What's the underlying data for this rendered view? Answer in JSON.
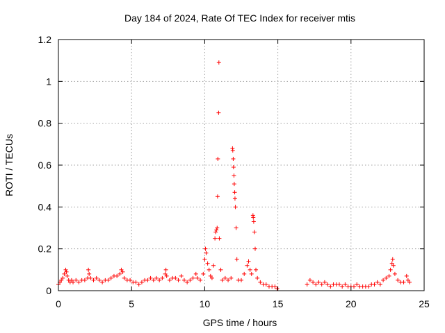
{
  "chart_data": {
    "type": "scatter",
    "title": "Day 184 of 2024, Rate Of TEC Index for receiver mtis",
    "xlabel": "GPS time / hours",
    "ylabel": "ROTI / TECUs",
    "xlim": [
      0,
      25
    ],
    "ylim": [
      0,
      1.2
    ],
    "xticks": [
      0,
      5,
      10,
      15,
      20,
      25
    ],
    "yticks": [
      0,
      0.2,
      0.4,
      0.6,
      0.8,
      1,
      1.2
    ],
    "xtick_labels": [
      "0",
      "5",
      "10",
      "15",
      "20",
      "25"
    ],
    "ytick_labels": [
      "0",
      "0.2",
      "0.4",
      "0.6",
      "0.8",
      "1",
      "1.2"
    ],
    "grid": true,
    "marker": "+",
    "color": "#ff0000",
    "series": [
      {
        "points": [
          [
            0.0,
            0.03
          ],
          [
            0.1,
            0.04
          ],
          [
            0.2,
            0.05
          ],
          [
            0.3,
            0.06
          ],
          [
            0.4,
            0.08
          ],
          [
            0.5,
            0.1
          ],
          [
            0.55,
            0.09
          ],
          [
            0.6,
            0.07
          ],
          [
            0.7,
            0.05
          ],
          [
            0.8,
            0.04
          ],
          [
            0.9,
            0.05
          ],
          [
            1.0,
            0.04
          ],
          [
            1.2,
            0.05
          ],
          [
            1.4,
            0.04
          ],
          [
            1.6,
            0.05
          ],
          [
            1.8,
            0.05
          ],
          [
            2.0,
            0.06
          ],
          [
            2.05,
            0.1
          ],
          [
            2.1,
            0.08
          ],
          [
            2.2,
            0.06
          ],
          [
            2.4,
            0.05
          ],
          [
            2.6,
            0.06
          ],
          [
            2.8,
            0.05
          ],
          [
            3.0,
            0.04
          ],
          [
            3.2,
            0.05
          ],
          [
            3.4,
            0.05
          ],
          [
            3.6,
            0.06
          ],
          [
            3.8,
            0.07
          ],
          [
            4.0,
            0.07
          ],
          [
            4.2,
            0.08
          ],
          [
            4.3,
            0.1
          ],
          [
            4.4,
            0.09
          ],
          [
            4.5,
            0.06
          ],
          [
            4.7,
            0.05
          ],
          [
            4.9,
            0.05
          ],
          [
            5.1,
            0.04
          ],
          [
            5.3,
            0.04
          ],
          [
            5.5,
            0.03
          ],
          [
            5.7,
            0.04
          ],
          [
            5.9,
            0.05
          ],
          [
            6.1,
            0.05
          ],
          [
            6.3,
            0.06
          ],
          [
            6.5,
            0.05
          ],
          [
            6.7,
            0.06
          ],
          [
            6.9,
            0.05
          ],
          [
            7.1,
            0.06
          ],
          [
            7.3,
            0.08
          ],
          [
            7.35,
            0.1
          ],
          [
            7.4,
            0.07
          ],
          [
            7.6,
            0.05
          ],
          [
            7.8,
            0.06
          ],
          [
            8.0,
            0.06
          ],
          [
            8.2,
            0.05
          ],
          [
            8.4,
            0.07
          ],
          [
            8.6,
            0.05
          ],
          [
            8.8,
            0.04
          ],
          [
            9.0,
            0.05
          ],
          [
            9.2,
            0.06
          ],
          [
            9.4,
            0.08
          ],
          [
            9.5,
            0.06
          ],
          [
            9.7,
            0.05
          ],
          [
            9.9,
            0.08
          ],
          [
            10.0,
            0.15
          ],
          [
            10.05,
            0.2
          ],
          [
            10.1,
            0.18
          ],
          [
            10.2,
            0.13
          ],
          [
            10.3,
            0.1
          ],
          [
            10.4,
            0.07
          ],
          [
            10.5,
            0.06
          ],
          [
            10.6,
            0.12
          ],
          [
            10.7,
            0.25
          ],
          [
            10.75,
            0.28
          ],
          [
            10.8,
            0.29
          ],
          [
            10.85,
            0.3
          ],
          [
            10.88,
            0.45
          ],
          [
            10.9,
            0.63
          ],
          [
            10.95,
            0.85
          ],
          [
            10.97,
            1.09
          ],
          [
            11.0,
            0.25
          ],
          [
            11.1,
            0.1
          ],
          [
            11.2,
            0.05
          ],
          [
            11.4,
            0.06
          ],
          [
            11.6,
            0.05
          ],
          [
            11.8,
            0.06
          ],
          [
            11.9,
            0.68
          ],
          [
            11.92,
            0.67
          ],
          [
            11.95,
            0.63
          ],
          [
            11.97,
            0.59
          ],
          [
            12.0,
            0.55
          ],
          [
            12.02,
            0.51
          ],
          [
            12.05,
            0.47
          ],
          [
            12.07,
            0.44
          ],
          [
            12.1,
            0.4
          ],
          [
            12.15,
            0.3
          ],
          [
            12.2,
            0.15
          ],
          [
            12.3,
            0.05
          ],
          [
            12.5,
            0.05
          ],
          [
            12.7,
            0.08
          ],
          [
            12.9,
            0.12
          ],
          [
            13.0,
            0.14
          ],
          [
            13.1,
            0.1
          ],
          [
            13.2,
            0.08
          ],
          [
            13.3,
            0.36
          ],
          [
            13.32,
            0.35
          ],
          [
            13.35,
            0.33
          ],
          [
            13.4,
            0.28
          ],
          [
            13.45,
            0.2
          ],
          [
            13.5,
            0.1
          ],
          [
            13.6,
            0.06
          ],
          [
            13.8,
            0.04
          ],
          [
            14.0,
            0.03
          ],
          [
            14.2,
            0.03
          ],
          [
            14.4,
            0.02
          ],
          [
            14.6,
            0.02
          ],
          [
            14.8,
            0.02
          ],
          [
            14.95,
            0.01
          ],
          [
            17.0,
            0.03
          ],
          [
            17.2,
            0.05
          ],
          [
            17.4,
            0.04
          ],
          [
            17.6,
            0.03
          ],
          [
            17.8,
            0.04
          ],
          [
            18.0,
            0.03
          ],
          [
            18.2,
            0.04
          ],
          [
            18.4,
            0.03
          ],
          [
            18.6,
            0.02
          ],
          [
            18.8,
            0.03
          ],
          [
            19.0,
            0.03
          ],
          [
            19.2,
            0.03
          ],
          [
            19.4,
            0.02
          ],
          [
            19.6,
            0.03
          ],
          [
            19.8,
            0.02
          ],
          [
            20.0,
            0.02
          ],
          [
            20.2,
            0.02
          ],
          [
            20.4,
            0.03
          ],
          [
            20.6,
            0.02
          ],
          [
            20.8,
            0.02
          ],
          [
            21.0,
            0.02
          ],
          [
            21.2,
            0.02
          ],
          [
            21.4,
            0.03
          ],
          [
            21.6,
            0.03
          ],
          [
            21.8,
            0.04
          ],
          [
            22.0,
            0.03
          ],
          [
            22.2,
            0.05
          ],
          [
            22.4,
            0.06
          ],
          [
            22.6,
            0.07
          ],
          [
            22.7,
            0.1
          ],
          [
            22.8,
            0.13
          ],
          [
            22.85,
            0.15
          ],
          [
            22.9,
            0.12
          ],
          [
            23.0,
            0.08
          ],
          [
            23.2,
            0.05
          ],
          [
            23.4,
            0.04
          ],
          [
            23.6,
            0.04
          ],
          [
            23.8,
            0.07
          ],
          [
            23.9,
            0.05
          ],
          [
            24.0,
            0.04
          ]
        ]
      }
    ]
  }
}
